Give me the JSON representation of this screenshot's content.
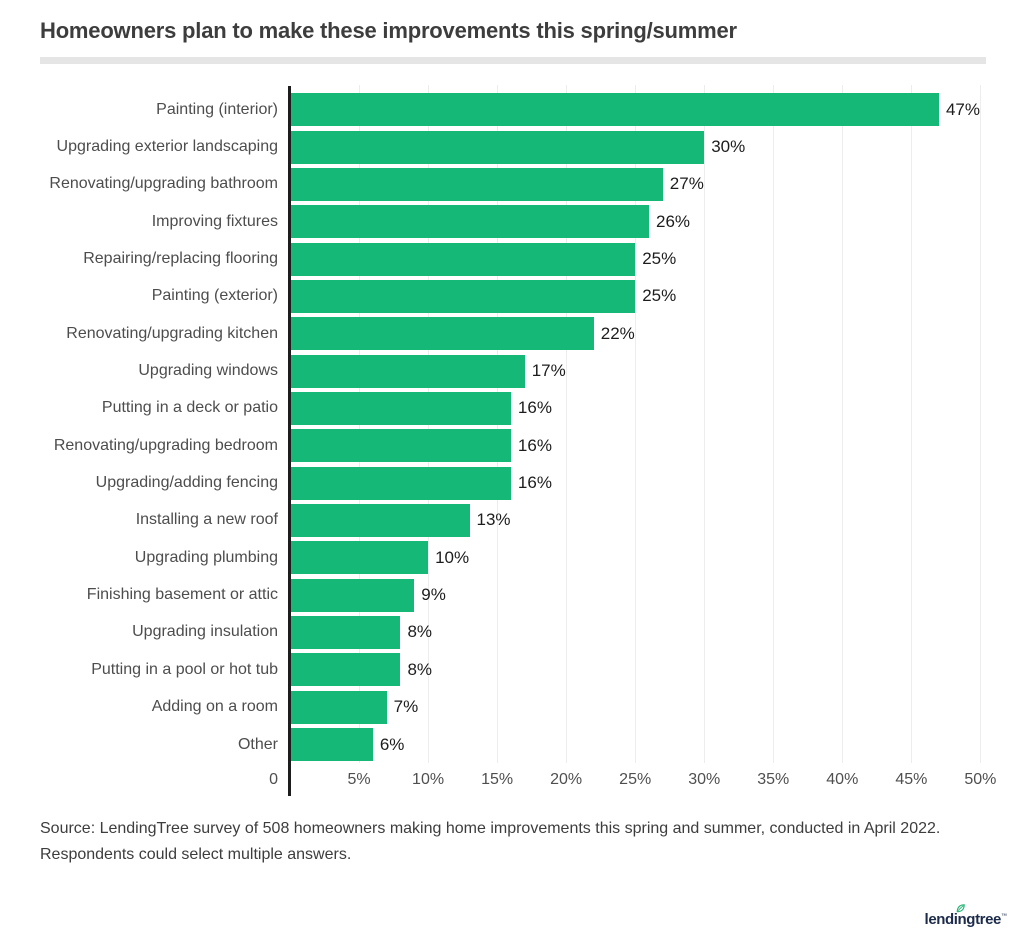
{
  "page": {
    "title": "Homeowners plan to make these improvements this spring/summer",
    "source_lines": [
      "Source: LendingTree survey of 508 homeowners making home improvements this spring and summer, conducted in April 2022.",
      "Respondents could select multiple answers."
    ]
  },
  "logo": {
    "text": "lendingtree",
    "trademark": "™"
  },
  "colors": {
    "bar": "#16b877",
    "axis_line": "#1d1d1d",
    "gridline": "#ededed",
    "divider": "#e5e5e5",
    "title_text": "#3d3d3d",
    "category_text": "#4d4d4d",
    "value_text": "#1d1d1d",
    "tick_text": "#4f4f4f",
    "source_text": "#3d3d3d",
    "logo_text": "#1c2b4a",
    "logo_leaf": "#25b575"
  },
  "chart_data": {
    "type": "bar",
    "orientation": "horizontal",
    "title": "Homeowners plan to make these improvements this spring/summer",
    "categories": [
      "Painting (interior)",
      "Upgrading exterior landscaping",
      "Renovating/upgrading bathroom",
      "Improving fixtures",
      "Repairing/replacing flooring",
      "Painting (exterior)",
      "Renovating/upgrading kitchen",
      "Upgrading windows",
      "Putting in a deck or patio",
      "Renovating/upgrading bedroom",
      "Upgrading/adding fencing",
      "Installing a new roof",
      "Upgrading plumbing",
      "Finishing basement or attic",
      "Upgrading insulation",
      "Putting in a pool or hot tub",
      "Adding on a room",
      "Other"
    ],
    "values": [
      47,
      30,
      27,
      26,
      25,
      25,
      22,
      17,
      16,
      16,
      16,
      13,
      10,
      9,
      8,
      8,
      7,
      6
    ],
    "value_labels": [
      "47%",
      "30%",
      "27%",
      "26%",
      "25%",
      "25%",
      "22%",
      "17%",
      "16%",
      "16%",
      "16%",
      "13%",
      "10%",
      "9%",
      "8%",
      "8%",
      "7%",
      "6%"
    ],
    "x_ticks": [
      {
        "value": 0,
        "label": "0"
      },
      {
        "value": 5,
        "label": "5%"
      },
      {
        "value": 10,
        "label": "10%"
      },
      {
        "value": 15,
        "label": "15%"
      },
      {
        "value": 20,
        "label": "20%"
      },
      {
        "value": 25,
        "label": "25%"
      },
      {
        "value": 30,
        "label": "30%"
      },
      {
        "value": 35,
        "label": "35%"
      },
      {
        "value": 40,
        "label": "40%"
      },
      {
        "value": 45,
        "label": "45%"
      },
      {
        "value": 50,
        "label": "50%"
      }
    ],
    "xlim": [
      0,
      50
    ],
    "ylabel": "",
    "xlabel": "",
    "grid": "vertical gridlines every 5%",
    "legend": "none"
  }
}
